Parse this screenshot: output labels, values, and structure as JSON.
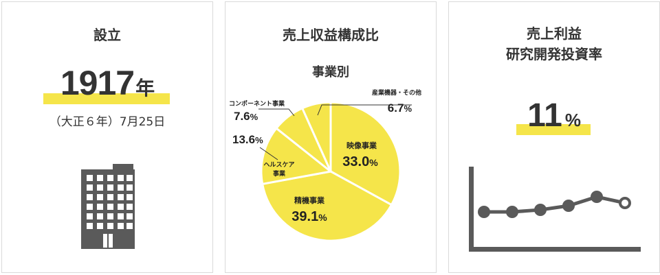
{
  "founding": {
    "title": "設立",
    "year": "1917",
    "year_unit": "年",
    "era_date": "（大正６年）7月25日",
    "icon": "building-icon"
  },
  "revenue": {
    "title": "売上収益構成比",
    "subtitle": "事業別",
    "chart_data": {
      "type": "pie",
      "title": "売上収益構成比",
      "subtitle": "事業別",
      "slices": [
        {
          "label": "映像事業",
          "value": 33.0,
          "display": "33.0"
        },
        {
          "label": "精機事業",
          "value": 39.1,
          "display": "39.1"
        },
        {
          "label": "ヘルスケア事業",
          "value": 13.6,
          "display": "13.6"
        },
        {
          "label": "コンポーネント事業",
          "value": 7.6,
          "display": "7.6"
        },
        {
          "label": "産業機器・その他",
          "value": 6.7,
          "display": "6.7"
        }
      ],
      "unit": "%",
      "color": "#f5e54a",
      "divider_color": "#ffffff"
    }
  },
  "rnd": {
    "title_line1": "売上利益",
    "title_line2": "研究開発投資率",
    "value": "11",
    "unit": "%",
    "icon": "line-chart-icon"
  },
  "colors": {
    "accent": "#f5e54a",
    "dark": "#5a5a5a",
    "text": "#333333",
    "border": "#d9d9d9"
  }
}
